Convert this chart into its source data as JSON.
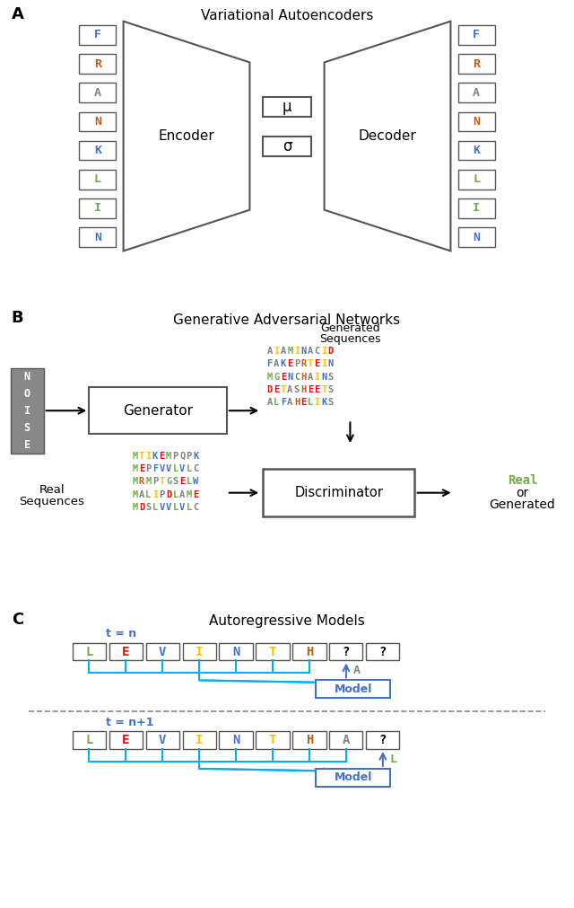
{
  "title_A": "Variational Autoencoders",
  "title_B": "Generative Adversarial Networks",
  "title_C": "Autoregressive Models",
  "panel_A_letters": [
    "F",
    "R",
    "A",
    "N",
    "K",
    "L",
    "I",
    "N"
  ],
  "panel_A_colors": [
    "#4472C4",
    "#C55A11",
    "#808080",
    "#C55A11",
    "#4472C4",
    "#70AD47",
    "#70AD47",
    "#4472C4"
  ],
  "panel_C1_letters": [
    "L",
    "E",
    "V",
    "I",
    "N",
    "T",
    "H",
    "?",
    "?"
  ],
  "panel_C1_colors": [
    "#70AD47",
    "#FF0000",
    "#4472C4",
    "#FFC000",
    "#4472C4",
    "#FFC000",
    "#C55A11",
    "#000000",
    "#000000"
  ],
  "panel_C2_letters": [
    "L",
    "E",
    "V",
    "I",
    "N",
    "T",
    "H",
    "A",
    "?"
  ],
  "panel_C2_colors": [
    "#70AD47",
    "#FF0000",
    "#4472C4",
    "#FFC000",
    "#4472C4",
    "#FFC000",
    "#C55A11",
    "#808080",
    "#000000"
  ],
  "gen_seqs": [
    [
      [
        "A",
        "#808080"
      ],
      [
        "I",
        "#FFC000"
      ],
      [
        "A",
        "#808080"
      ],
      [
        "M",
        "#70AD47"
      ],
      [
        "I",
        "#FFC000"
      ],
      [
        "N",
        "#4472C4"
      ],
      [
        "A",
        "#808080"
      ],
      [
        "C",
        "#808080"
      ],
      [
        "I",
        "#FFC000"
      ],
      [
        "D",
        "#FF0000"
      ]
    ],
    [
      [
        "F",
        "#4472C4"
      ],
      [
        "A",
        "#808080"
      ],
      [
        "K",
        "#4472C4"
      ],
      [
        "E",
        "#FF0000"
      ],
      [
        "P",
        "#808080"
      ],
      [
        "R",
        "#C55A11"
      ],
      [
        "T",
        "#FFC000"
      ],
      [
        "E",
        "#FF0000"
      ],
      [
        "I",
        "#FFC000"
      ],
      [
        "N",
        "#4472C4"
      ]
    ],
    [
      [
        "M",
        "#70AD47"
      ],
      [
        "G",
        "#70AD47"
      ],
      [
        "E",
        "#FF0000"
      ],
      [
        "N",
        "#4472C4"
      ],
      [
        "C",
        "#808080"
      ],
      [
        "H",
        "#C55A11"
      ],
      [
        "A",
        "#808080"
      ],
      [
        "I",
        "#FFC000"
      ],
      [
        "N",
        "#4472C4"
      ],
      [
        "S",
        "#808080"
      ]
    ],
    [
      [
        "D",
        "#FF0000"
      ],
      [
        "E",
        "#FF0000"
      ],
      [
        "T",
        "#FFC000"
      ],
      [
        "A",
        "#808080"
      ],
      [
        "S",
        "#808080"
      ],
      [
        "H",
        "#C55A11"
      ],
      [
        "E",
        "#FF0000"
      ],
      [
        "E",
        "#FF0000"
      ],
      [
        "T",
        "#FFC000"
      ],
      [
        "S",
        "#808080"
      ]
    ],
    [
      [
        "A",
        "#808080"
      ],
      [
        "L",
        "#70AD47"
      ],
      [
        "F",
        "#4472C4"
      ],
      [
        "A",
        "#808080"
      ],
      [
        "H",
        "#C55A11"
      ],
      [
        "E",
        "#FF0000"
      ],
      [
        "L",
        "#70AD47"
      ],
      [
        "I",
        "#FFC000"
      ],
      [
        "K",
        "#4472C4"
      ],
      [
        "S",
        "#808080"
      ]
    ]
  ],
  "real_seqs": [
    [
      [
        "M",
        "#70AD47"
      ],
      [
        "T",
        "#FFC000"
      ],
      [
        "I",
        "#FFC000"
      ],
      [
        "K",
        "#4472C4"
      ],
      [
        "E",
        "#FF0000"
      ],
      [
        "M",
        "#70AD47"
      ],
      [
        "P",
        "#808080"
      ],
      [
        "Q",
        "#808080"
      ],
      [
        "P",
        "#808080"
      ],
      [
        "K",
        "#4472C4"
      ]
    ],
    [
      [
        "M",
        "#70AD47"
      ],
      [
        "E",
        "#FF0000"
      ],
      [
        "P",
        "#808080"
      ],
      [
        "F",
        "#4472C4"
      ],
      [
        "V",
        "#4472C4"
      ],
      [
        "V",
        "#4472C4"
      ],
      [
        "L",
        "#70AD47"
      ],
      [
        "V",
        "#4472C4"
      ],
      [
        "L",
        "#70AD47"
      ],
      [
        "C",
        "#808080"
      ]
    ],
    [
      [
        "M",
        "#70AD47"
      ],
      [
        "R",
        "#C55A11"
      ],
      [
        "M",
        "#70AD47"
      ],
      [
        "P",
        "#808080"
      ],
      [
        "T",
        "#FFC000"
      ],
      [
        "G",
        "#70AD47"
      ],
      [
        "S",
        "#808080"
      ],
      [
        "E",
        "#FF0000"
      ],
      [
        "L",
        "#70AD47"
      ],
      [
        "W",
        "#4472C4"
      ]
    ],
    [
      [
        "M",
        "#70AD47"
      ],
      [
        "A",
        "#808080"
      ],
      [
        "L",
        "#70AD47"
      ],
      [
        "I",
        "#FFC000"
      ],
      [
        "P",
        "#808080"
      ],
      [
        "D",
        "#FF0000"
      ],
      [
        "L",
        "#70AD47"
      ],
      [
        "A",
        "#808080"
      ],
      [
        "M",
        "#70AD47"
      ],
      [
        "E",
        "#FF0000"
      ]
    ],
    [
      [
        "M",
        "#70AD47"
      ],
      [
        "D",
        "#FF0000"
      ],
      [
        "S",
        "#808080"
      ],
      [
        "L",
        "#70AD47"
      ],
      [
        "V",
        "#4472C4"
      ],
      [
        "V",
        "#4472C4"
      ],
      [
        "L",
        "#70AD47"
      ],
      [
        "V",
        "#4472C4"
      ],
      [
        "L",
        "#70AD47"
      ],
      [
        "C",
        "#808080"
      ]
    ]
  ],
  "cyan": "#00B0F0",
  "blue_model": "#4472C4",
  "green_real": "#70AD47",
  "edge_color": "#555555"
}
